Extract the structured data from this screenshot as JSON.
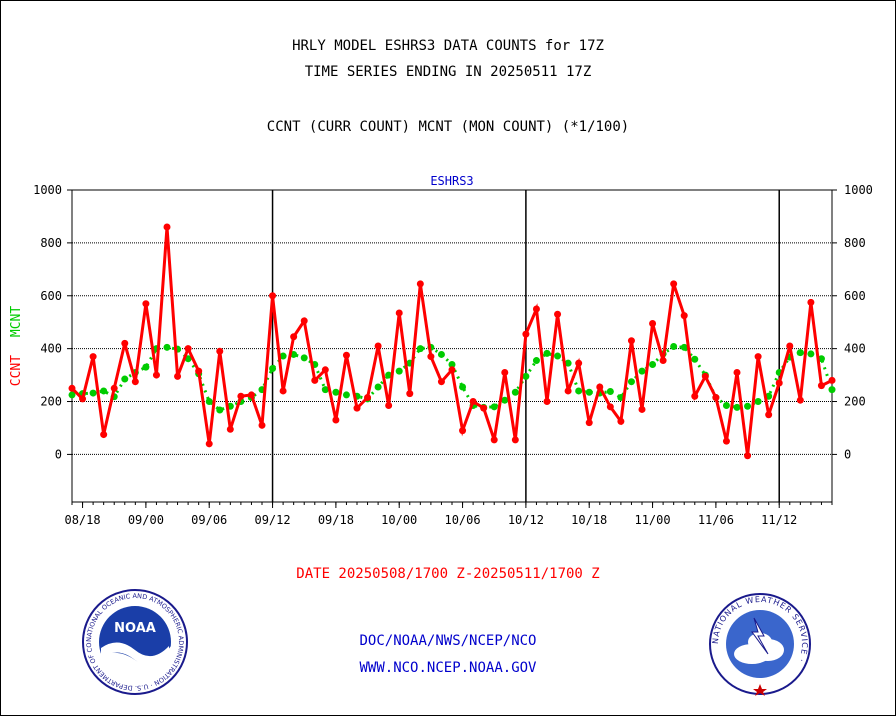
{
  "header": {
    "title_line1": "HRLY MODEL ESHRS3 DATA COUNTS for 17Z",
    "title_line2": "TIME SERIES ENDING IN 20250511 17Z",
    "subtitle": "CCNT (CURR COUNT) MCNT (MON COUNT) (*1/100)"
  },
  "footer": {
    "date_range": "DATE 20250508/1700 Z-20250511/1700 Z",
    "org_line": "DOC/NOAA/NWS/NCEP/NCO",
    "url_line": "WWW.NCO.NCEP.NOAA.GOV"
  },
  "logos": {
    "noaa_text": "NOAA",
    "noaa_ring": "NATIONAL OCEANIC AND ATMOSPHERIC ADMINISTRATION · U.S. DEPARTMENT OF COMMERCE ·",
    "nws_ring": "NATIONAL WEATHER SERVICE ·"
  },
  "chart_data": {
    "type": "line",
    "title": "ESHRS3",
    "ylabel_parts": [
      {
        "text": "CCNT",
        "color": "#ff0000"
      },
      {
        "text": "MCNT",
        "color": "#00cc00"
      }
    ],
    "ylim": [
      -180,
      1000
    ],
    "yticks": [
      0,
      200,
      400,
      600,
      800,
      1000
    ],
    "grid": true,
    "x_ticks": [
      "08/18",
      "09/00",
      "09/06",
      "09/12",
      "09/18",
      "10/00",
      "10/06",
      "10/12",
      "10/18",
      "11/00",
      "11/06",
      "11/12"
    ],
    "day_separators": [
      "09/12",
      "10/12",
      "11/12"
    ],
    "series": [
      {
        "name": "CCNT",
        "color": "#ff0000",
        "values": [
          250,
          210,
          370,
          75,
          250,
          420,
          275,
          570,
          300,
          860,
          295,
          400,
          315,
          40,
          390,
          95,
          220,
          225,
          110,
          600,
          240,
          445,
          505,
          280,
          320,
          130,
          375,
          175,
          215,
          410,
          185,
          535,
          230,
          645,
          370,
          275,
          320,
          90,
          200,
          175,
          55,
          310,
          55,
          455,
          550,
          200,
          530,
          240,
          345,
          120,
          255,
          180,
          125,
          430,
          170,
          495,
          355,
          645,
          525,
          220,
          295,
          215,
          50,
          310,
          -5,
          370,
          150,
          270,
          410,
          205,
          575,
          260,
          280
        ]
      },
      {
        "name": "MCNT",
        "color": "#00cc00",
        "values": [
          225,
          230,
          232,
          240,
          218,
          285,
          310,
          330,
          400,
          405,
          398,
          362,
          305,
          200,
          168,
          182,
          200,
          215,
          245,
          325,
          372,
          378,
          365,
          340,
          245,
          235,
          225,
          220,
          210,
          255,
          300,
          315,
          345,
          400,
          405,
          378,
          340,
          255,
          185,
          178,
          180,
          205,
          235,
          295,
          355,
          382,
          372,
          345,
          240,
          235,
          232,
          238,
          215,
          275,
          315,
          340,
          380,
          408,
          405,
          360,
          300,
          215,
          185,
          178,
          182,
          200,
          220,
          310,
          368,
          385,
          380,
          362,
          245
        ]
      }
    ]
  }
}
